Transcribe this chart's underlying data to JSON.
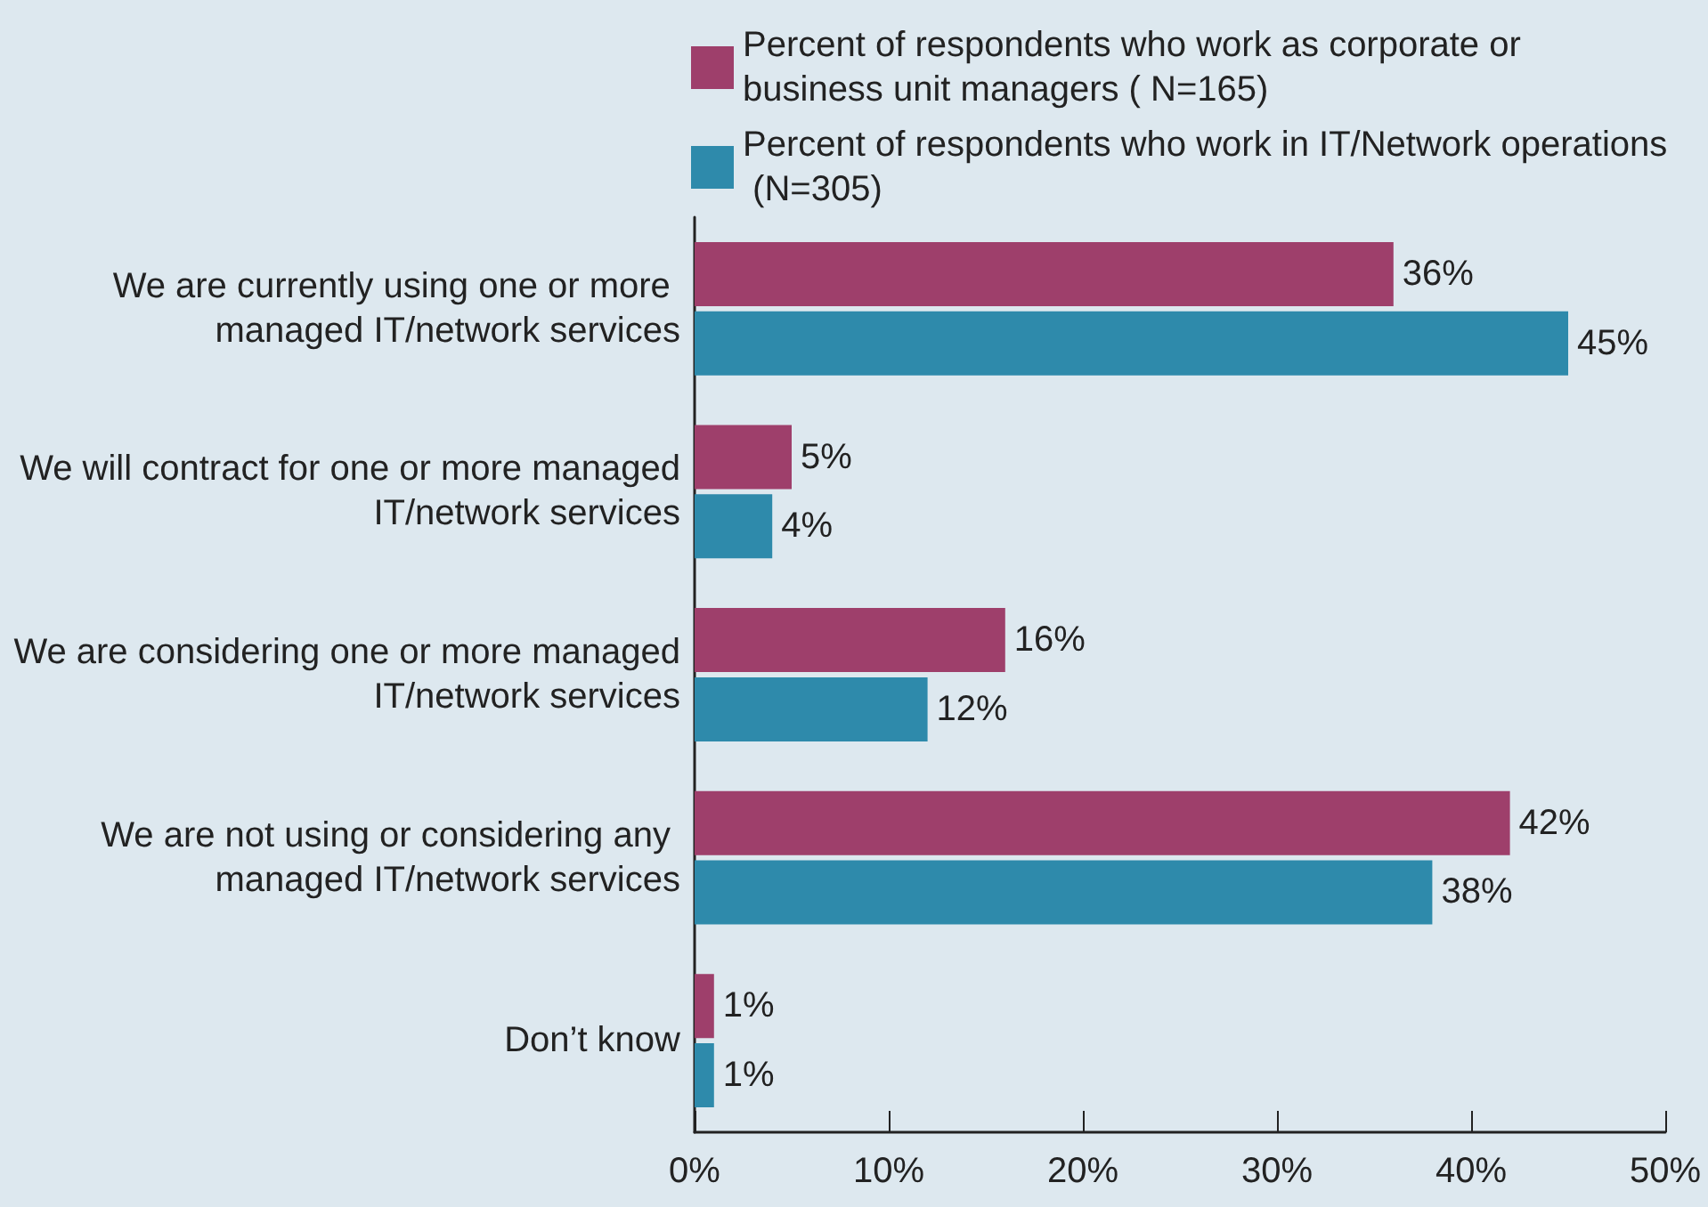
{
  "chart_data": {
    "type": "bar",
    "orientation": "horizontal",
    "legend": "top right",
    "grid": false,
    "categories": [
      "We are currently using one or more managed IT/network services",
      "We will contract for one or more managed IT/network services",
      "We are considering one or more managed IT/network services",
      "We are not using or considering any managed IT/network services",
      "Don’t know"
    ],
    "series": [
      {
        "name": "Percent of respondents who work as corporate or business unit managers ( N=165)",
        "color": "#9e3f6b",
        "values": [
          36,
          5,
          16,
          42,
          1
        ],
        "value_labels": [
          "36%",
          "5%",
          "16%",
          "42%",
          "1%"
        ]
      },
      {
        "name": "Percent of respondents who work in IT/Network operations (N=305)",
        "color": "#2e8aab",
        "values": [
          45,
          4,
          12,
          38,
          1
        ],
        "value_labels": [
          "45%",
          "4%",
          "12%",
          "38%",
          "1%"
        ]
      }
    ],
    "xlim": [
      0,
      50
    ],
    "xticks": [
      {
        "value": 0,
        "label": "0%"
      },
      {
        "value": 10,
        "label": "10%"
      },
      {
        "value": 20,
        "label": "20%"
      },
      {
        "value": 30,
        "label": "30%"
      },
      {
        "value": 40,
        "label": "40%"
      },
      {
        "value": 50,
        "label": "50%"
      }
    ]
  }
}
